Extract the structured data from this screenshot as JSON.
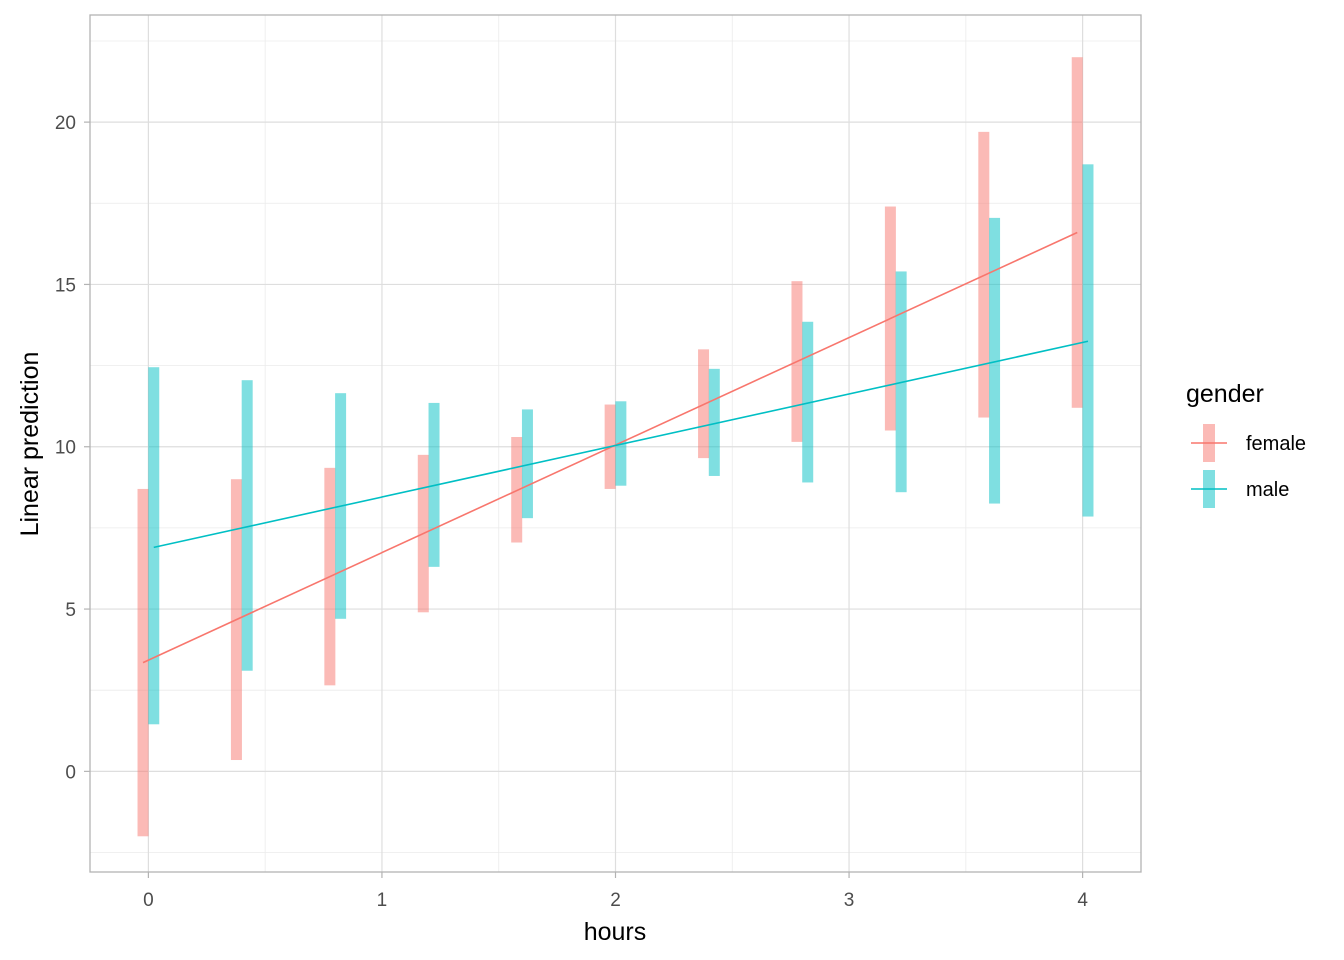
{
  "chart_data": {
    "type": "line",
    "title": "",
    "xlabel": "hours",
    "ylabel": "Linear prediction",
    "xlim": [
      -0.25,
      4.25
    ],
    "ylim": [
      -3.1,
      23.3
    ],
    "x_ticks": [
      0,
      1,
      2,
      3,
      4
    ],
    "x_tick_labels": [
      "0",
      "1",
      "2",
      "3",
      "4"
    ],
    "y_ticks": [
      0,
      5,
      10,
      15,
      20
    ],
    "y_tick_labels": [
      "0",
      "5",
      "10",
      "15",
      "20"
    ],
    "grid": true,
    "legend": {
      "title": "gender",
      "position": "right"
    },
    "x": [
      0,
      0.4,
      0.8,
      1.2,
      1.6,
      2.0,
      2.4,
      2.8,
      3.2,
      3.6,
      4.0
    ],
    "series": [
      {
        "name": "female",
        "color": "#F8766D",
        "band_color": "#F8766D",
        "fit_start": [
          0,
          3.35
        ],
        "fit_end": [
          4,
          16.6
        ],
        "lower": [
          -2.0,
          0.35,
          2.65,
          4.9,
          7.05,
          8.7,
          9.65,
          10.15,
          10.5,
          10.9,
          11.2
        ],
        "upper": [
          8.7,
          9.0,
          9.35,
          9.75,
          10.3,
          11.3,
          13.0,
          15.1,
          17.4,
          19.7,
          22.0
        ]
      },
      {
        "name": "male",
        "color": "#00BFC4",
        "band_color": "#00BFC4",
        "fit_start": [
          0,
          6.9
        ],
        "fit_end": [
          4,
          13.25
        ],
        "lower": [
          1.45,
          3.1,
          4.7,
          6.3,
          7.8,
          8.8,
          9.1,
          8.9,
          8.6,
          8.25,
          7.85
        ],
        "upper": [
          12.45,
          12.05,
          11.65,
          11.35,
          11.15,
          11.4,
          12.4,
          13.85,
          15.4,
          17.05,
          18.7
        ]
      }
    ]
  }
}
